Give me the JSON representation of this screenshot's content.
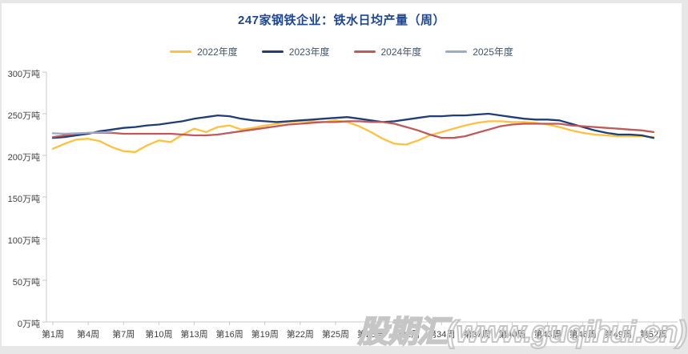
{
  "page": {
    "background": "#e7e7e7",
    "card_background": "#ffffff"
  },
  "header": {
    "title": "247家钢铁企业：铁水日均产量（周）",
    "title_color": "#1d4693"
  },
  "legend": {
    "items": [
      {
        "label": "2022年度",
        "color": "#FFC13D"
      },
      {
        "label": "2023年度",
        "color": "#1F3E75"
      },
      {
        "label": "2024年度",
        "color": "#C05A5A"
      },
      {
        "label": "2025年度",
        "color": "#97ABCD"
      }
    ]
  },
  "watermark": {
    "text": "股期汇(www.guqihui.cn)"
  },
  "chart_data": {
    "type": "line",
    "title": "247家钢铁企业：铁水日均产量（周）",
    "xlabel": "",
    "ylabel": "万吨",
    "x_range": [
      1,
      52
    ],
    "ylim": [
      0,
      300
    ],
    "grid": false,
    "legend_position": "top",
    "x_ticks": [
      "第1周",
      "第4周",
      "第7周",
      "第10周",
      "第13周",
      "第16周",
      "第19周",
      "第22周",
      "第25周",
      "第28周",
      "第31周",
      "第34周",
      "第37周",
      "第40周",
      "第43周",
      "第46周",
      "第49周",
      "第52周"
    ],
    "y_ticks": [
      "0万吨",
      "50万吨",
      "100万吨",
      "150万吨",
      "200万吨",
      "250万吨",
      "300万吨"
    ],
    "series": [
      {
        "name": "2022年度",
        "color": "#FFC13D",
        "start_week": 1,
        "values": [
          208,
          214,
          219,
          220,
          217,
          210,
          205,
          204,
          212,
          218,
          216,
          225,
          232,
          228,
          234,
          236,
          231,
          233,
          236,
          238,
          240,
          241,
          241,
          240,
          242,
          240,
          235,
          228,
          220,
          214,
          213,
          218,
          224,
          228,
          232,
          236,
          239,
          241,
          241,
          240,
          240,
          239,
          237,
          234,
          230,
          227,
          225,
          224,
          223,
          223,
          223,
          222
        ]
      },
      {
        "name": "2023年度",
        "color": "#1F3E75",
        "start_week": 1,
        "values": [
          221,
          222,
          224,
          226,
          229,
          231,
          233,
          234,
          236,
          237,
          239,
          241,
          244,
          246,
          248,
          247,
          244,
          242,
          241,
          240,
          241,
          242,
          243,
          244,
          245,
          246,
          244,
          242,
          240,
          241,
          243,
          245,
          247,
          247,
          248,
          248,
          249,
          250,
          248,
          246,
          244,
          243,
          243,
          242,
          238,
          234,
          230,
          227,
          225,
          225,
          224,
          221
        ]
      },
      {
        "name": "2024年度",
        "color": "#C05A5A",
        "start_week": 1,
        "values": [
          222,
          224,
          226,
          227,
          227,
          227,
          226,
          226,
          226,
          226,
          226,
          225,
          224,
          224,
          225,
          227,
          229,
          231,
          233,
          235,
          237,
          238,
          239,
          240,
          240,
          241,
          241,
          240,
          240,
          238,
          234,
          230,
          225,
          221,
          221,
          223,
          227,
          231,
          235,
          237,
          238,
          238,
          238,
          238,
          236,
          235,
          234,
          233,
          232,
          231,
          230,
          228
        ]
      },
      {
        "name": "2025年度",
        "color": "#97ABCD",
        "start_week": 1,
        "values": [
          226.5,
          226,
          226.5,
          227,
          227.5,
          228
        ]
      }
    ]
  }
}
